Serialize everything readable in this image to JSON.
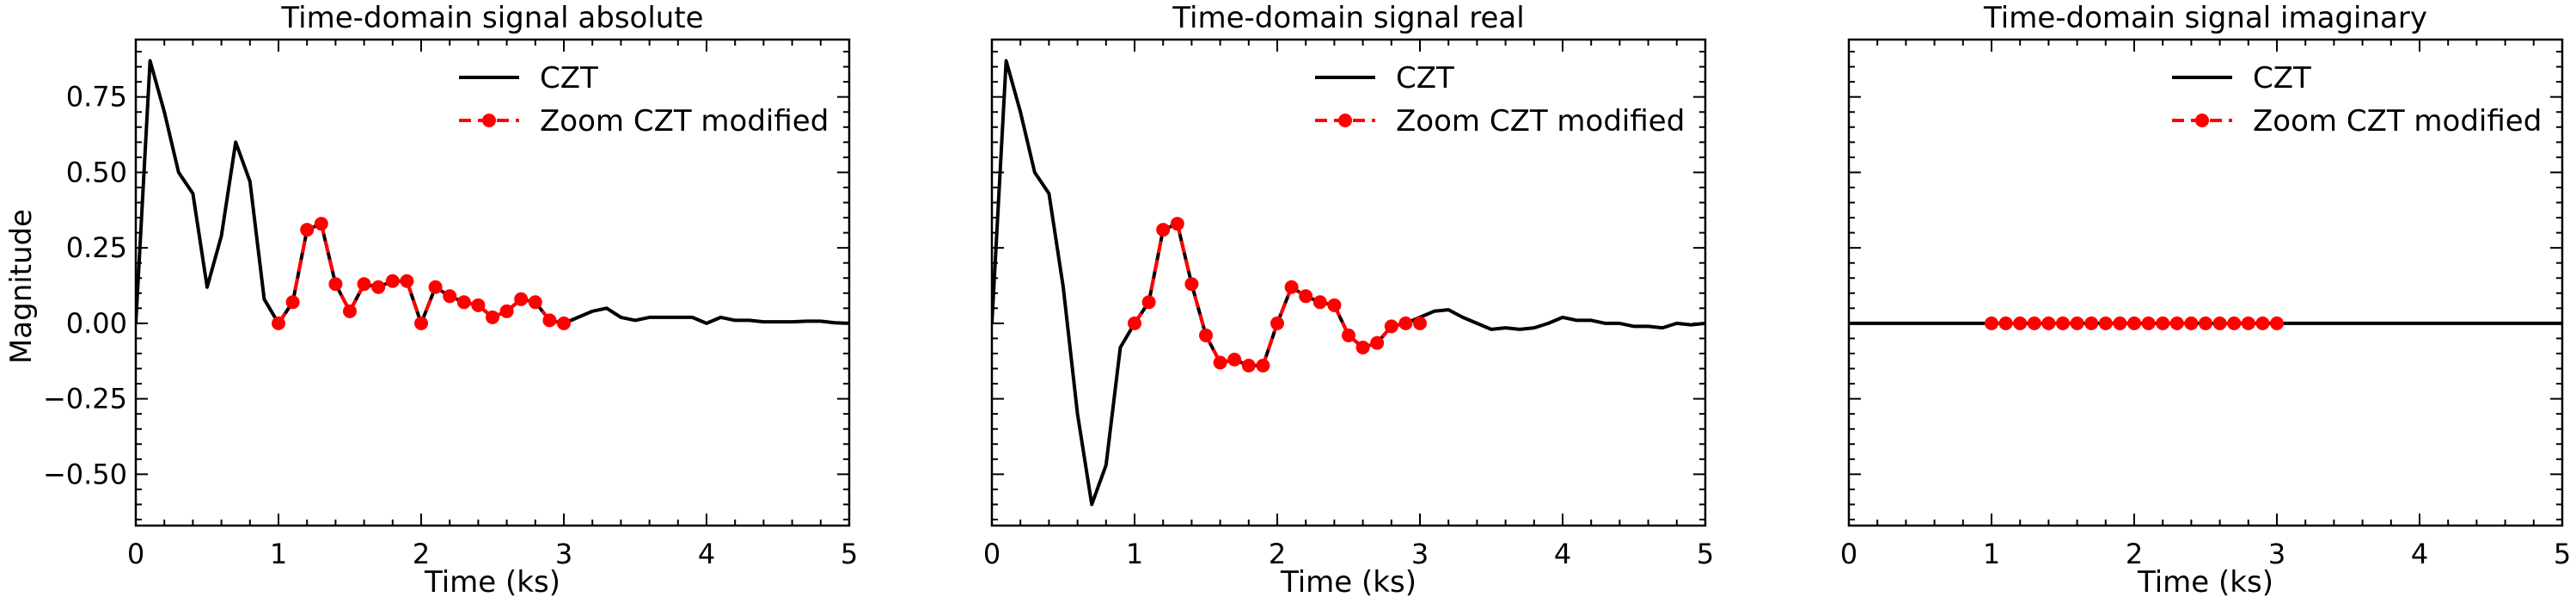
{
  "colors": {
    "czt": "#000000",
    "zoom": "#ff0000",
    "background": "#ffffff"
  },
  "chart_data": [
    {
      "type": "line",
      "title": "Time-domain signal absolute",
      "xlabel": "Time (ks)",
      "ylabel": "Magnitude",
      "xlim": [
        0,
        5
      ],
      "ylim": [
        -0.67,
        0.94
      ],
      "xticks": [
        0,
        1,
        2,
        3,
        4,
        5
      ],
      "xtick_labels": [
        "0",
        "1",
        "2",
        "3",
        "4",
        "5"
      ],
      "yticks": [
        -0.5,
        -0.25,
        0.0,
        0.25,
        0.5,
        0.75
      ],
      "ytick_labels": [
        "−0.50",
        "−0.25",
        "0.00",
        "0.25",
        "0.50",
        "0.75"
      ],
      "grid": false,
      "legend_position": "top-right",
      "series": [
        {
          "name": "CZT",
          "style": "solid",
          "x": [
            0.0,
            0.1,
            0.2,
            0.3,
            0.4,
            0.5,
            0.6,
            0.7,
            0.8,
            0.9,
            1.0,
            1.1,
            1.2,
            1.3,
            1.4,
            1.5,
            1.6,
            1.7,
            1.8,
            1.9,
            2.0,
            2.1,
            2.2,
            2.3,
            2.4,
            2.5,
            2.6,
            2.7,
            2.8,
            2.9,
            3.0,
            3.1,
            3.2,
            3.3,
            3.4,
            3.5,
            3.6,
            3.7,
            3.8,
            3.9,
            4.0,
            4.1,
            4.2,
            4.3,
            4.4,
            4.5,
            4.6,
            4.7,
            4.8,
            4.9,
            5.0
          ],
          "y": [
            0.0,
            0.87,
            0.7,
            0.5,
            0.43,
            0.12,
            0.29,
            0.6,
            0.47,
            0.08,
            0.0,
            0.07,
            0.31,
            0.33,
            0.13,
            0.04,
            0.13,
            0.12,
            0.14,
            0.14,
            0.0,
            0.12,
            0.09,
            0.07,
            0.06,
            0.02,
            0.04,
            0.08,
            0.07,
            0.01,
            0.0,
            0.02,
            0.04,
            0.05,
            0.02,
            0.01,
            0.02,
            0.02,
            0.02,
            0.02,
            0.0,
            0.02,
            0.01,
            0.01,
            0.005,
            0.005,
            0.005,
            0.007,
            0.007,
            0.002,
            0.0
          ]
        },
        {
          "name": "Zoom CZT modified",
          "style": "dashed-markers",
          "x": [
            1.0,
            1.1,
            1.2,
            1.3,
            1.4,
            1.5,
            1.6,
            1.7,
            1.8,
            1.9,
            2.0,
            2.1,
            2.2,
            2.3,
            2.4,
            2.5,
            2.6,
            2.7,
            2.8,
            2.9,
            3.0
          ],
          "y": [
            0.0,
            0.07,
            0.31,
            0.33,
            0.13,
            0.04,
            0.13,
            0.12,
            0.14,
            0.14,
            0.0,
            0.12,
            0.09,
            0.07,
            0.06,
            0.02,
            0.04,
            0.08,
            0.07,
            0.01,
            0.0
          ]
        }
      ]
    },
    {
      "type": "line",
      "title": "Time-domain signal real",
      "xlabel": "Time (ks)",
      "ylabel": "",
      "xlim": [
        0,
        5
      ],
      "ylim": [
        -0.67,
        0.94
      ],
      "xticks": [
        0,
        1,
        2,
        3,
        4,
        5
      ],
      "xtick_labels": [
        "0",
        "1",
        "2",
        "3",
        "4",
        "5"
      ],
      "yticks": [
        -0.5,
        -0.25,
        0.0,
        0.25,
        0.5,
        0.75
      ],
      "ytick_labels": [],
      "grid": false,
      "legend_position": "top-right",
      "series": [
        {
          "name": "CZT",
          "style": "solid",
          "x": [
            0.0,
            0.1,
            0.2,
            0.3,
            0.4,
            0.5,
            0.6,
            0.7,
            0.8,
            0.9,
            1.0,
            1.1,
            1.2,
            1.3,
            1.4,
            1.5,
            1.6,
            1.7,
            1.8,
            1.9,
            2.0,
            2.1,
            2.2,
            2.3,
            2.4,
            2.5,
            2.6,
            2.7,
            2.8,
            2.9,
            3.0,
            3.1,
            3.2,
            3.3,
            3.4,
            3.5,
            3.6,
            3.7,
            3.8,
            3.9,
            4.0,
            4.1,
            4.2,
            4.3,
            4.4,
            4.5,
            4.6,
            4.7,
            4.8,
            4.9,
            5.0
          ],
          "y": [
            0.0,
            0.87,
            0.7,
            0.5,
            0.43,
            0.12,
            -0.3,
            -0.6,
            -0.47,
            -0.08,
            0.0,
            0.07,
            0.31,
            0.33,
            0.13,
            -0.04,
            -0.13,
            -0.12,
            -0.14,
            -0.14,
            0.0,
            0.12,
            0.09,
            0.07,
            0.06,
            -0.04,
            -0.08,
            -0.065,
            -0.01,
            0.0,
            0.02,
            0.04,
            0.045,
            0.02,
            0.0,
            -0.02,
            -0.015,
            -0.02,
            -0.015,
            0.0,
            0.02,
            0.01,
            0.01,
            0.0,
            0.0,
            -0.01,
            -0.01,
            -0.015,
            0.0,
            -0.005,
            0.0
          ]
        },
        {
          "name": "Zoom CZT modified",
          "style": "dashed-markers",
          "x": [
            1.0,
            1.1,
            1.2,
            1.3,
            1.4,
            1.5,
            1.6,
            1.7,
            1.8,
            1.9,
            2.0,
            2.1,
            2.2,
            2.3,
            2.4,
            2.5,
            2.6,
            2.7,
            2.8,
            2.9,
            3.0
          ],
          "y": [
            0.0,
            0.07,
            0.31,
            0.33,
            0.13,
            -0.04,
            -0.13,
            -0.12,
            -0.14,
            -0.14,
            0.0,
            0.12,
            0.09,
            0.07,
            0.06,
            -0.04,
            -0.08,
            -0.065,
            -0.01,
            0.0,
            0.0
          ]
        }
      ]
    },
    {
      "type": "line",
      "title": "Time-domain signal imaginary",
      "xlabel": "Time (ks)",
      "ylabel": "",
      "xlim": [
        0,
        5
      ],
      "ylim": [
        -0.67,
        0.94
      ],
      "xticks": [
        0,
        1,
        2,
        3,
        4,
        5
      ],
      "xtick_labels": [
        "0",
        "1",
        "2",
        "3",
        "4",
        "5"
      ],
      "yticks": [
        -0.5,
        -0.25,
        0.0,
        0.25,
        0.5,
        0.75
      ],
      "ytick_labels": [],
      "grid": false,
      "legend_position": "top-right",
      "series": [
        {
          "name": "CZT",
          "style": "solid",
          "x": [
            0,
            5
          ],
          "y": [
            0.0,
            0.0
          ]
        },
        {
          "name": "Zoom CZT modified",
          "style": "dashed-markers",
          "x": [
            1.0,
            1.1,
            1.2,
            1.3,
            1.4,
            1.5,
            1.6,
            1.7,
            1.8,
            1.9,
            2.0,
            2.1,
            2.2,
            2.3,
            2.4,
            2.5,
            2.6,
            2.7,
            2.8,
            2.9,
            3.0
          ],
          "y": [
            0,
            0,
            0,
            0,
            0,
            0,
            0,
            0,
            0,
            0,
            0,
            0,
            0,
            0,
            0,
            0,
            0,
            0,
            0,
            0,
            0
          ]
        }
      ]
    }
  ]
}
